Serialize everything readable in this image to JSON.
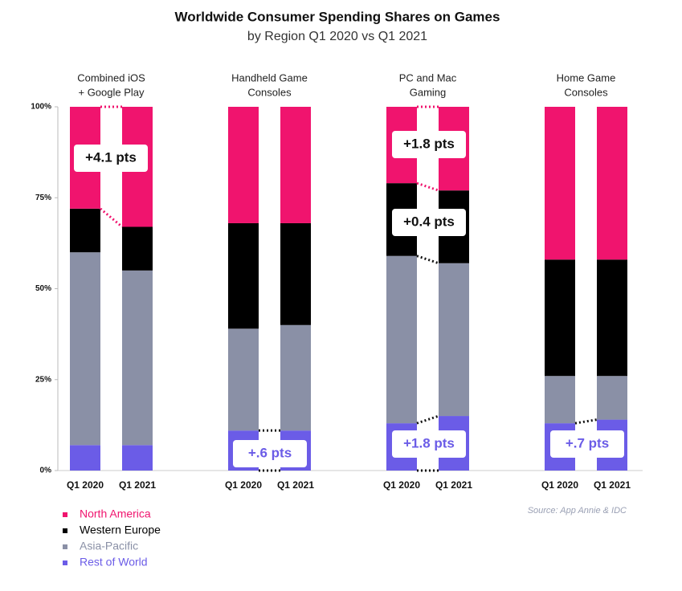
{
  "chart_data": {
    "type": "stacked_bar",
    "title": "Worldwide Consumer Spending Shares on Games",
    "subtitle": "by Region Q1 2020 vs Q1 2021",
    "group_labels": [
      [
        "Combined iOS",
        "+ Google Play"
      ],
      [
        "Handheld Game",
        "Consoles"
      ],
      [
        "PC and Mac",
        "Gaming"
      ],
      [
        "Home Game",
        "Consoles"
      ]
    ],
    "categories": [
      "Q1 2020",
      "Q1 2021",
      "Q1 2020",
      "Q1 2021",
      "Q1 2020",
      "Q1 2021",
      "Q1 2020",
      "Q1 2021"
    ],
    "series": [
      {
        "name": "North America",
        "color": "#f0146e",
        "values": [
          28,
          33,
          32,
          32,
          21,
          23,
          42,
          42
        ]
      },
      {
        "name": "Western Europe",
        "color": "#000000",
        "values": [
          12,
          12,
          29,
          28,
          20,
          20,
          32,
          32
        ]
      },
      {
        "name": "Asia-Pacific",
        "color": "#8a90a6",
        "values": [
          53,
          48,
          28,
          29,
          46,
          42,
          13,
          12
        ]
      },
      {
        "name": "Rest of World",
        "color": "#6b5ce7",
        "values": [
          7,
          7,
          11,
          11,
          13,
          15,
          13,
          14
        ]
      }
    ],
    "ylim": [
      0,
      100
    ],
    "yticks": [
      {
        "value": 0,
        "label": "0%"
      },
      {
        "value": 25,
        "label": "25%"
      },
      {
        "value": 50,
        "label": "50%"
      },
      {
        "value": 75,
        "label": "75%"
      },
      {
        "value": 100,
        "label": "100%"
      }
    ],
    "annotations": [
      "+4.1 pts",
      "+1.8 pts",
      "+0.4 pts",
      "+.6 pts",
      "+1.8 pts",
      "+.7 pts"
    ],
    "source": "Source: App Annie & IDC"
  }
}
